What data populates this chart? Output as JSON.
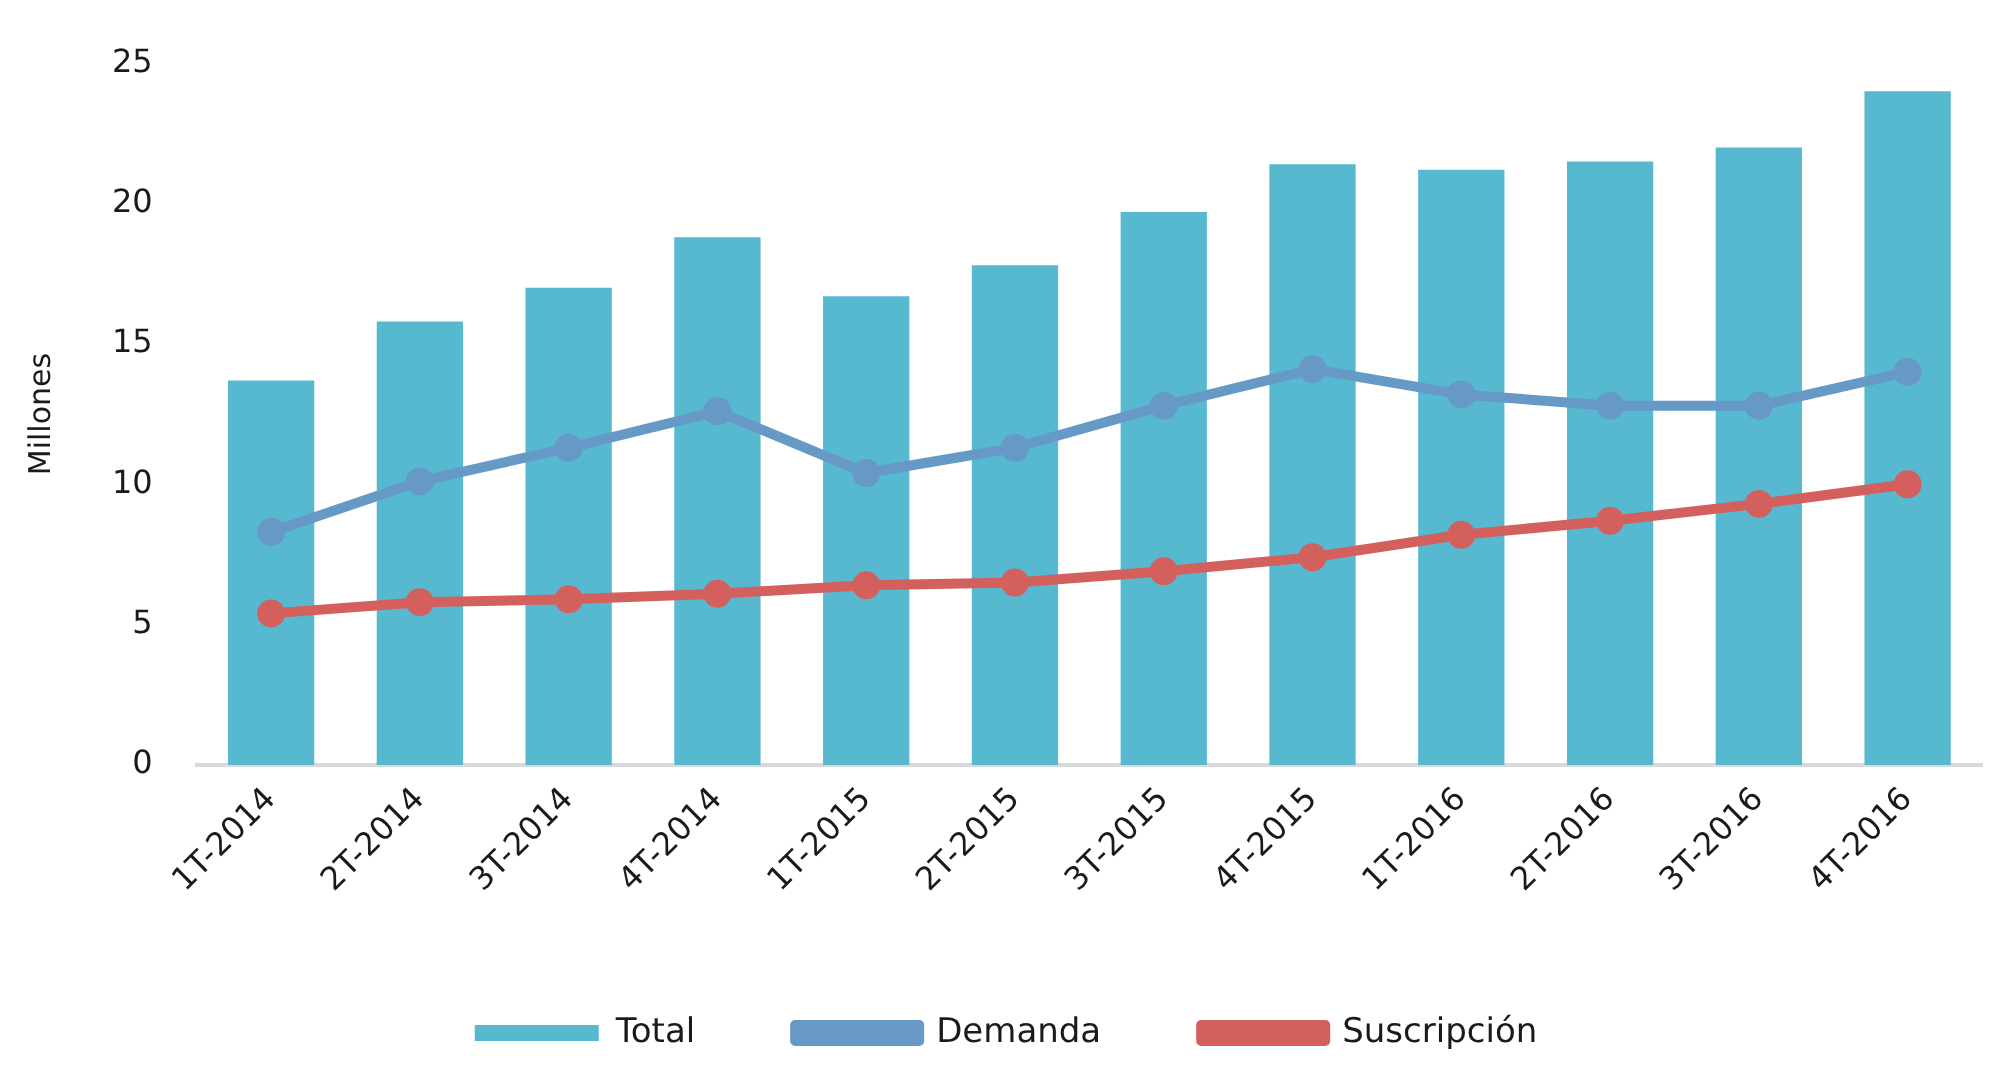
{
  "chart_data": {
    "type": "bar",
    "ylabel": "Millones",
    "categories": [
      "1T-2014",
      "2T-2014",
      "3T-2014",
      "4T-2014",
      "1T-2015",
      "2T-2015",
      "3T-2015",
      "4T-2015",
      "1T-2016",
      "2T-2016",
      "3T-2016",
      "4T-2016"
    ],
    "series": [
      {
        "name": "Total",
        "color": "#56b9cf",
        "values": [
          13.7,
          15.8,
          17.0,
          18.8,
          16.7,
          17.8,
          19.7,
          21.4,
          21.2,
          21.5,
          22.0,
          24.0
        ]
      },
      {
        "name": "Demanda",
        "type": "line",
        "color": "#6699c6",
        "values": [
          8.3,
          10.1,
          11.3,
          12.6,
          10.4,
          11.3,
          12.8,
          14.1,
          13.2,
          12.8,
          12.8,
          14.0
        ]
      },
      {
        "name": "Suscripción",
        "type": "line",
        "color": "#d4605e",
        "values": [
          5.4,
          5.8,
          5.9,
          6.1,
          6.4,
          6.5,
          6.9,
          7.4,
          8.2,
          8.7,
          9.3,
          10.0
        ]
      }
    ],
    "ylim": [
      0,
      25
    ],
    "yticks": [
      0,
      5,
      10,
      15,
      20,
      25
    ],
    "grid": false,
    "legend": "bottom",
    "marker": "circle",
    "line_style": "solid"
  }
}
